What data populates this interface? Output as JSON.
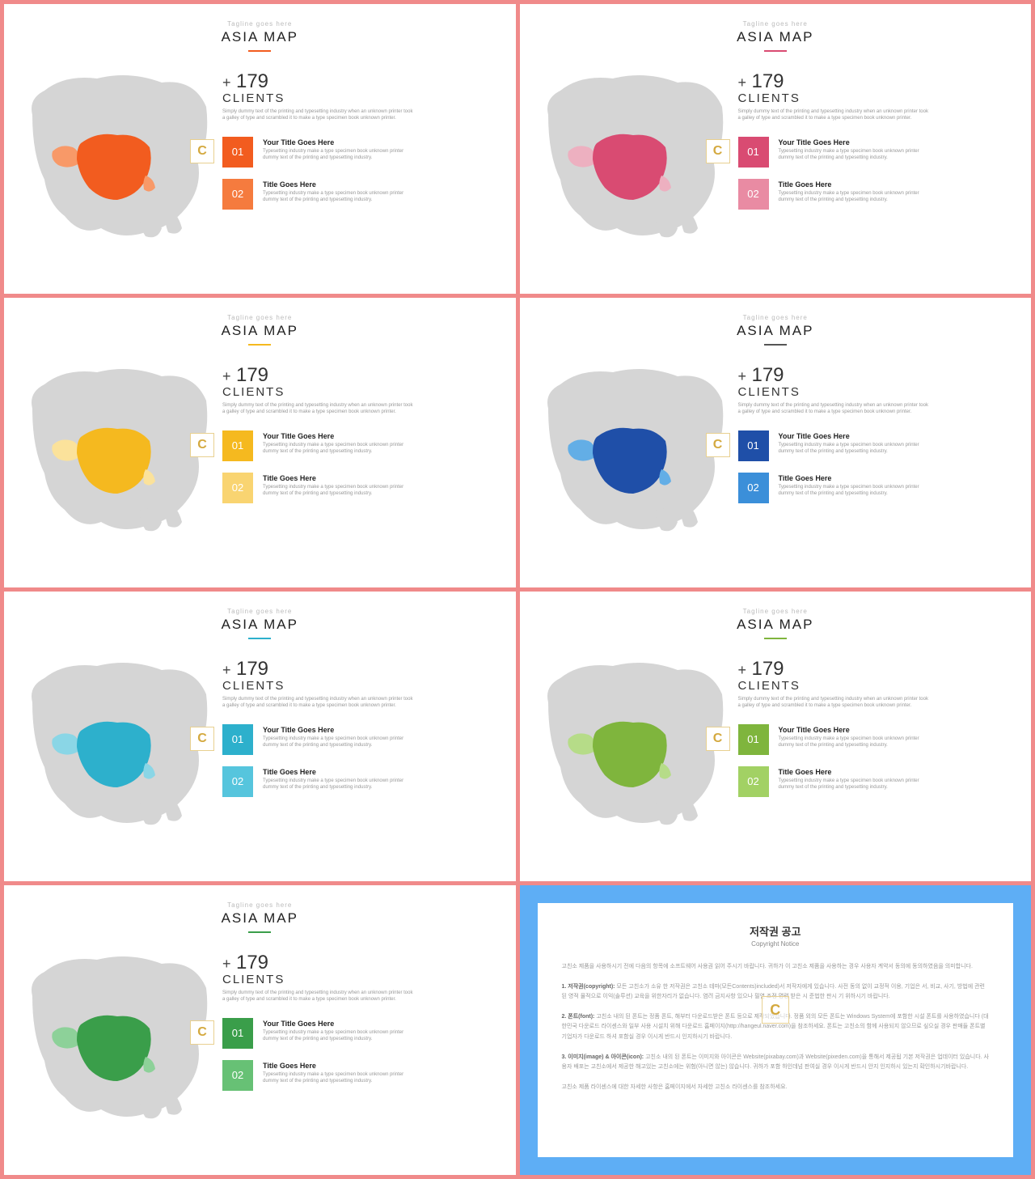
{
  "common": {
    "tagline": "Tagline goes here",
    "title": "ASIA MAP",
    "counter_plus": "+",
    "counter_number": "179",
    "counter_label": "CLIENTS",
    "counter_desc": "Simply dummy text of the printing and typesetting industry when an unknown printer took a galley of type and scrambled it to make a type specimen book unknown printer.",
    "watermark": "C",
    "item1_num": "01",
    "item1_title": "Your Title Goes Here",
    "item1_desc": "Typesetting industry make a type specimen book unknown printer dummy text of the printing and typesetting industry.",
    "item2_num": "02",
    "item2_title": "Title Goes Here",
    "item2_desc": "Typesetting industry make a type specimen book unknown printer dummy text of the printing and typesetting industry."
  },
  "slides": [
    {
      "primary": "#f25c1f",
      "secondary": "#f57b3e",
      "underline": "#f25c1f",
      "map_light": "#f89968"
    },
    {
      "primary": "#d94b72",
      "secondary": "#e98ba3",
      "underline": "#d94b72",
      "map_light": "#edb0c0"
    },
    {
      "primary": "#f5b91f",
      "secondary": "#f9d471",
      "underline": "#f5b91f",
      "map_light": "#fbe29b"
    },
    {
      "primary": "#1f4fa8",
      "secondary": "#3b8fd9",
      "underline": "#555555",
      "map_light": "#63aee6"
    },
    {
      "primary": "#2db0cc",
      "secondary": "#56c5dd",
      "underline": "#2db0cc",
      "map_light": "#8ad6e6"
    },
    {
      "primary": "#7fb53d",
      "secondary": "#a2d164",
      "underline": "#7fb53d",
      "map_light": "#b6dc88"
    },
    {
      "primary": "#3a9e4a",
      "secondary": "#67c175",
      "underline": "#3a9e4a",
      "map_light": "#8dd199"
    }
  ],
  "copyright": {
    "title": "저작권 공고",
    "subtitle": "Copyright Notice",
    "p1": "고친소 제품을 사용하시기 전에 다음의 항목에 소프트웨어 사용권 읽어 주시기 바랍니다. 귀하가 이 고친소 제품을 사용하는 경우 사용자 계약서 동의에 동의하였음을 의미합니다.",
    "p2_label": "1. 저작권(copyright):",
    "p2": " 모든 고친소가 소유 한 저작권은 고친소 테마(모든Contents)included)서 저작자에게 있습니다. 사전 동의 없이 교정적 이용, 기업은 서, 비교, 사기, 방법에 관련된 영적 물적으로 이익(솔루션) 교육을 위한자리가 없습니다. 염려 금지사항 있으나 필연 조정 명령 받은 시 준법한 판시 기 위하시기 바랍니다.",
    "p3_label": "2. 폰트(font):",
    "p3": " 고친소 내의 된 폰트는 정품 폰트, 해부터 다운로드받은 폰트 등으로 제작되었습니다. 정품 외의 모든 폰트는 Windows System에 포함한 시설 폰트를 사용하였습니다 (대한민국 다운로드 라이센스와 일부 사용 시설치 위해 다운로드 홈페이지(http://hangeul.naver.com)을 참조하세요. 폰트는 고친소의 함께 사용되지 않으므로 싶으실 경우 판매들 폰트별 기업자가 다운로드 하셔 포함실 경우 이시게 반드시 인지하시기 바랍니다.",
    "p4_label": "3. 이미지(image) & 아이콘(icon):",
    "p4": " 고친소 내의 된 폰트는 이미지와 아이콘은 Website(pixabay.com)과 Website(pixeden.com)을 통해서 제공됩 기본 저작권은 업데이터 있습니다. 사용자 배포는 고친소에서 제공한 해고있는 고친소에는 위험(아니면 않는) 않습니다. 귀하가 포함 하인데넘 판여실 경우 이시게 반드시 안지 인지하시 있는지 확인하시기바랍니다.",
    "p5": "고친소 제품 라이센스에 대한 자세한 사항은 홈페이지에서 자세한 고친소 라이센스를 참조하세요."
  }
}
